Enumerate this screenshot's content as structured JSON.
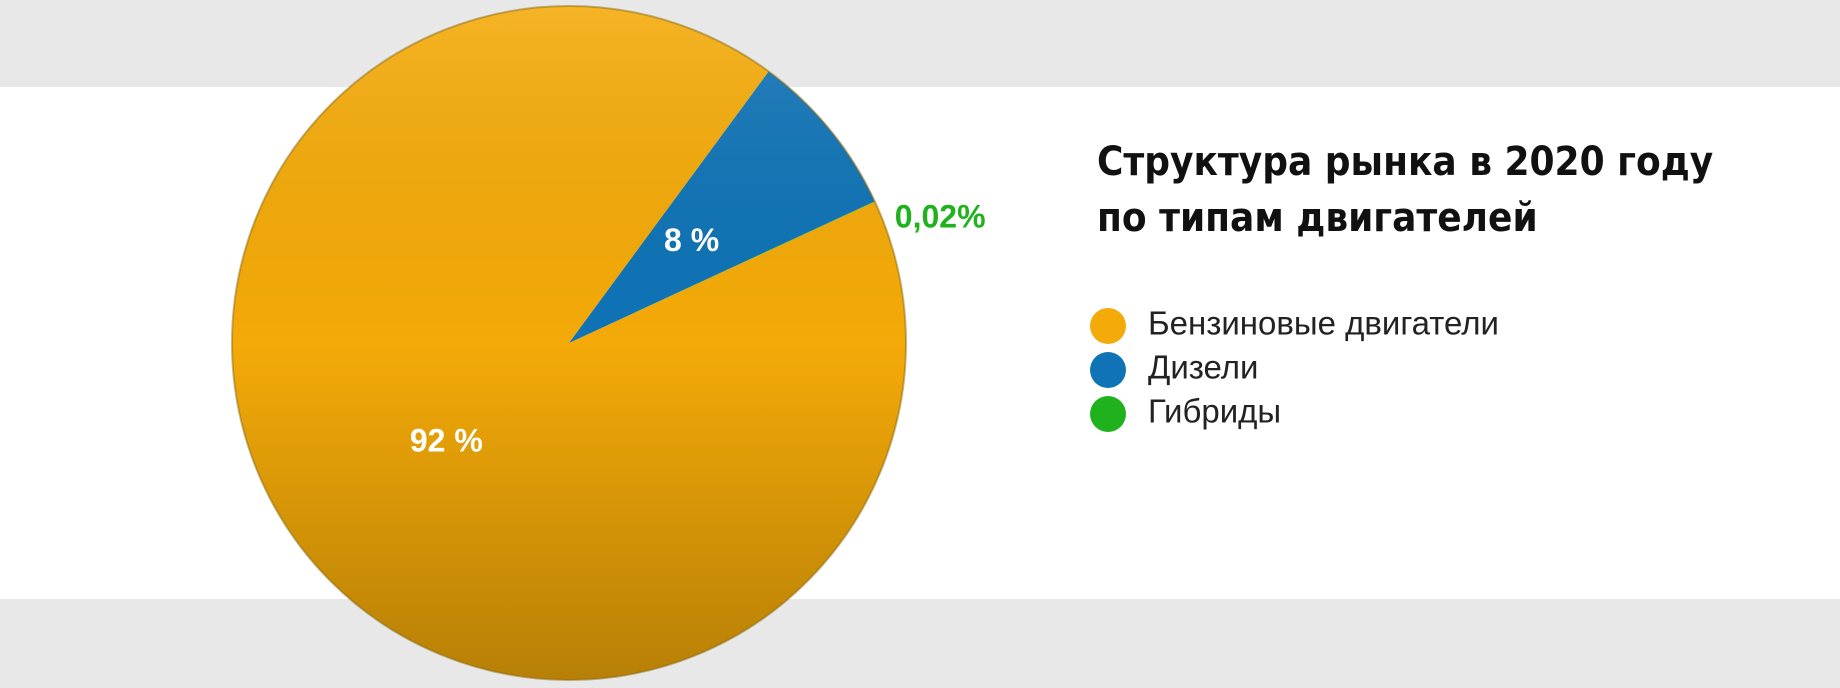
{
  "chart_data": {
    "type": "pie",
    "title": [
      "Структура рынка в 2020 году",
      "по типам двигателей"
    ],
    "categories": [
      "Бензиновые двигатели",
      "Дизели",
      "Гибриды"
    ],
    "values": [
      92,
      8,
      0.02
    ],
    "value_labels": [
      "92 %",
      "8 %",
      "0,02%"
    ],
    "colors": [
      "#f4aa08",
      "#0f73b6",
      "#20b21c"
    ],
    "legend": "right"
  }
}
